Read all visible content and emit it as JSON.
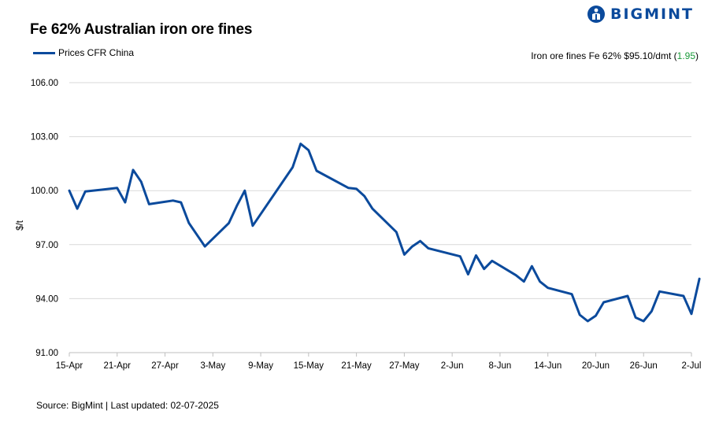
{
  "title": "Fe 62% Australian iron ore fines",
  "logo": {
    "text": "BIGMINT",
    "icon": "bigmint-logo-icon"
  },
  "annotation": {
    "prefix": "Iron ore fines Fe 62% $95.10/dmt (",
    "change": "1.95",
    "suffix": ")",
    "change_color": "#1a9a3a"
  },
  "source": "Source: BigMint | Last updated: 02-07-2025",
  "chart_data": {
    "type": "line",
    "title": "Fe 62% Australian iron ore fines",
    "xlabel": "",
    "ylabel": "$/t",
    "ylim": [
      91,
      106
    ],
    "yticks": [
      91,
      94,
      97,
      100,
      103,
      106
    ],
    "ytick_labels": [
      "91.00",
      "94.00",
      "97.00",
      "100.00",
      "103.00",
      "106.00"
    ],
    "x_start": "2025-04-15",
    "xticks": [
      "2025-04-15",
      "2025-04-21",
      "2025-04-27",
      "2025-05-03",
      "2025-05-09",
      "2025-05-15",
      "2025-05-21",
      "2025-05-27",
      "2025-06-02",
      "2025-06-08",
      "2025-06-14",
      "2025-06-20",
      "2025-06-26",
      "2025-07-02"
    ],
    "xtick_labels": [
      "15-Apr",
      "21-Apr",
      "27-Apr",
      "3-May",
      "9-May",
      "15-May",
      "21-May",
      "27-May",
      "2-Jun",
      "8-Jun",
      "14-Jun",
      "20-Jun",
      "26-Jun",
      "2-Jul"
    ],
    "grid": true,
    "legend": "top-left",
    "series": [
      {
        "name": "Prices CFR China",
        "color": "#0b4a9c",
        "points": [
          [
            "2025-04-15",
            100.0
          ],
          [
            "2025-04-16",
            99.0
          ],
          [
            "2025-04-17",
            99.95
          ],
          [
            "2025-04-21",
            100.15
          ],
          [
            "2025-04-22",
            99.35
          ],
          [
            "2025-04-23",
            101.15
          ],
          [
            "2025-04-24",
            100.5
          ],
          [
            "2025-04-25",
            99.25
          ],
          [
            "2025-04-28",
            99.45
          ],
          [
            "2025-04-29",
            99.35
          ],
          [
            "2025-04-30",
            98.2
          ],
          [
            "2025-05-02",
            96.9
          ],
          [
            "2025-05-05",
            98.2
          ],
          [
            "2025-05-06",
            99.15
          ],
          [
            "2025-05-07",
            100.0
          ],
          [
            "2025-05-08",
            98.05
          ],
          [
            "2025-05-13",
            101.3
          ],
          [
            "2025-05-14",
            102.6
          ],
          [
            "2025-05-15",
            102.25
          ],
          [
            "2025-05-16",
            101.1
          ],
          [
            "2025-05-20",
            100.15
          ],
          [
            "2025-05-21",
            100.1
          ],
          [
            "2025-05-22",
            99.7
          ],
          [
            "2025-05-23",
            99.0
          ],
          [
            "2025-05-26",
            97.7
          ],
          [
            "2025-05-27",
            96.45
          ],
          [
            "2025-05-28",
            96.9
          ],
          [
            "2025-05-29",
            97.2
          ],
          [
            "2025-05-30",
            96.8
          ],
          [
            "2025-06-03",
            96.35
          ],
          [
            "2025-06-04",
            95.35
          ],
          [
            "2025-06-05",
            96.4
          ],
          [
            "2025-06-06",
            95.65
          ],
          [
            "2025-06-07",
            96.1
          ],
          [
            "2025-06-10",
            95.3
          ],
          [
            "2025-06-11",
            94.95
          ],
          [
            "2025-06-12",
            95.8
          ],
          [
            "2025-06-13",
            94.95
          ],
          [
            "2025-06-14",
            94.6
          ],
          [
            "2025-06-17",
            94.25
          ],
          [
            "2025-06-18",
            93.1
          ],
          [
            "2025-06-19",
            92.75
          ],
          [
            "2025-06-20",
            93.05
          ],
          [
            "2025-06-21",
            93.8
          ],
          [
            "2025-06-24",
            94.15
          ],
          [
            "2025-06-25",
            92.95
          ],
          [
            "2025-06-26",
            92.75
          ],
          [
            "2025-06-27",
            93.3
          ],
          [
            "2025-06-28",
            94.4
          ],
          [
            "2025-07-01",
            94.15
          ],
          [
            "2025-07-02",
            93.15
          ],
          [
            "2025-07-03",
            95.1
          ]
        ]
      }
    ]
  }
}
